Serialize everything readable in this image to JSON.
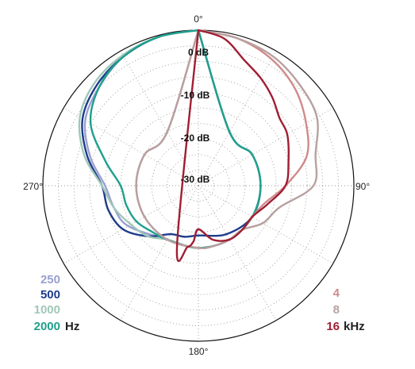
{
  "chart_data": {
    "type": "polar",
    "angle_labels": [
      {
        "angle": 0,
        "text": "0°"
      },
      {
        "angle": 90,
        "text": "90°"
      },
      {
        "angle": 180,
        "text": "180°"
      },
      {
        "angle": 270,
        "text": "270°"
      }
    ],
    "radial_range": [
      -50,
      0
    ],
    "radial_labels": [
      {
        "value": 0,
        "text": "0 dB"
      },
      {
        "value": -10,
        "text": "-10 dB"
      },
      {
        "value": -20,
        "text": "-20 dB"
      },
      {
        "value": -30,
        "text": "-30 dB"
      }
    ],
    "grid": true,
    "legend_left": {
      "unit": "Hz",
      "entries": [
        {
          "label": "250",
          "color": "#9aa0d0"
        },
        {
          "label": "500",
          "color": "#1e3c8c"
        },
        {
          "label": "1000",
          "color": "#a0c8b8"
        },
        {
          "label": "2000",
          "color": "#1ea08c"
        }
      ]
    },
    "legend_right": {
      "unit": "kHz",
      "entries": [
        {
          "label": "4",
          "color": "#d08a8a"
        },
        {
          "label": "8",
          "color": "#b8a0a0"
        },
        {
          "label": "16",
          "color": "#a01e32"
        }
      ]
    },
    "series": [
      {
        "name": "250",
        "color": "#9aa0d0",
        "angles": [
          0,
          30,
          60,
          90,
          120,
          150,
          180,
          210,
          240,
          255,
          270,
          285,
          300,
          315,
          330,
          345,
          360
        ],
        "db": [
          0,
          -30,
          -30,
          -30,
          -30,
          -30,
          -30,
          -30,
          -24,
          -22,
          -20,
          -14,
          -8,
          -5,
          -2,
          -0.5,
          0
        ]
      },
      {
        "name": "500",
        "color": "#1e3c8c",
        "angles": [
          0,
          30,
          60,
          90,
          120,
          150,
          180,
          195,
          210,
          225,
          240,
          255,
          270,
          285,
          300,
          315,
          330,
          345,
          360
        ],
        "db": [
          0,
          -30,
          -30,
          -30,
          -30,
          -32,
          -34,
          -33,
          -32,
          -27,
          -22,
          -20,
          -19,
          -13,
          -7,
          -4,
          -2,
          -0.5,
          0
        ]
      },
      {
        "name": "1000",
        "color": "#a0c8b8",
        "angles": [
          0,
          30,
          60,
          90,
          120,
          150,
          180,
          210,
          225,
          240,
          255,
          270,
          285,
          300,
          315,
          330,
          345,
          360
        ],
        "db": [
          0,
          -30,
          -30,
          -30,
          -30,
          -30,
          -30,
          -30,
          -27,
          -25,
          -22,
          -19,
          -12,
          -6,
          -3,
          -1.5,
          -0.5,
          0
        ]
      },
      {
        "name": "2000",
        "color": "#1ea08c",
        "angles": [
          0,
          30,
          60,
          90,
          120,
          150,
          180,
          210,
          225,
          240,
          255,
          270,
          285,
          300,
          315,
          330,
          345,
          360
        ],
        "db": [
          0,
          -30,
          -30,
          -30,
          -30,
          -30,
          -30,
          -30,
          -29,
          -27,
          -26,
          -25,
          -19,
          -10,
          -5,
          -2,
          -0.5,
          0
        ]
      },
      {
        "name": "4",
        "color": "#d08a8a",
        "angles": [
          0,
          15,
          30,
          45,
          60,
          75,
          90,
          105,
          120,
          135,
          150,
          165,
          180,
          210,
          240,
          270,
          300,
          330,
          360
        ],
        "db": [
          0,
          -1,
          -3,
          -6,
          -10,
          -14,
          -22,
          -28,
          -30,
          -30,
          -30,
          -30,
          -30,
          -30,
          -30,
          -30,
          -30,
          -30,
          0
        ]
      },
      {
        "name": "8",
        "color": "#b8a0a0",
        "angles": [
          0,
          15,
          30,
          45,
          60,
          75,
          90,
          105,
          120,
          135,
          150,
          165,
          180,
          210,
          240,
          270,
          300,
          330,
          360
        ],
        "db": [
          0,
          -1,
          -2,
          -4,
          -6,
          -11,
          -13,
          -23,
          -26,
          -30,
          -30,
          -30,
          -30,
          -30,
          -30,
          -30,
          -30,
          -30,
          0
        ]
      },
      {
        "name": "16",
        "color": "#a01e32",
        "angles": [
          0,
          10,
          20,
          30,
          40,
          50,
          60,
          75,
          90,
          105,
          120,
          135,
          150,
          165,
          180,
          185,
          190,
          200,
          360
        ],
        "db": [
          0,
          -2,
          -7,
          -10,
          -13,
          -16,
          -17,
          -20,
          -22,
          -27,
          -30,
          -30,
          -30,
          -32,
          -36,
          -32,
          -30,
          -30,
          0
        ]
      }
    ]
  }
}
